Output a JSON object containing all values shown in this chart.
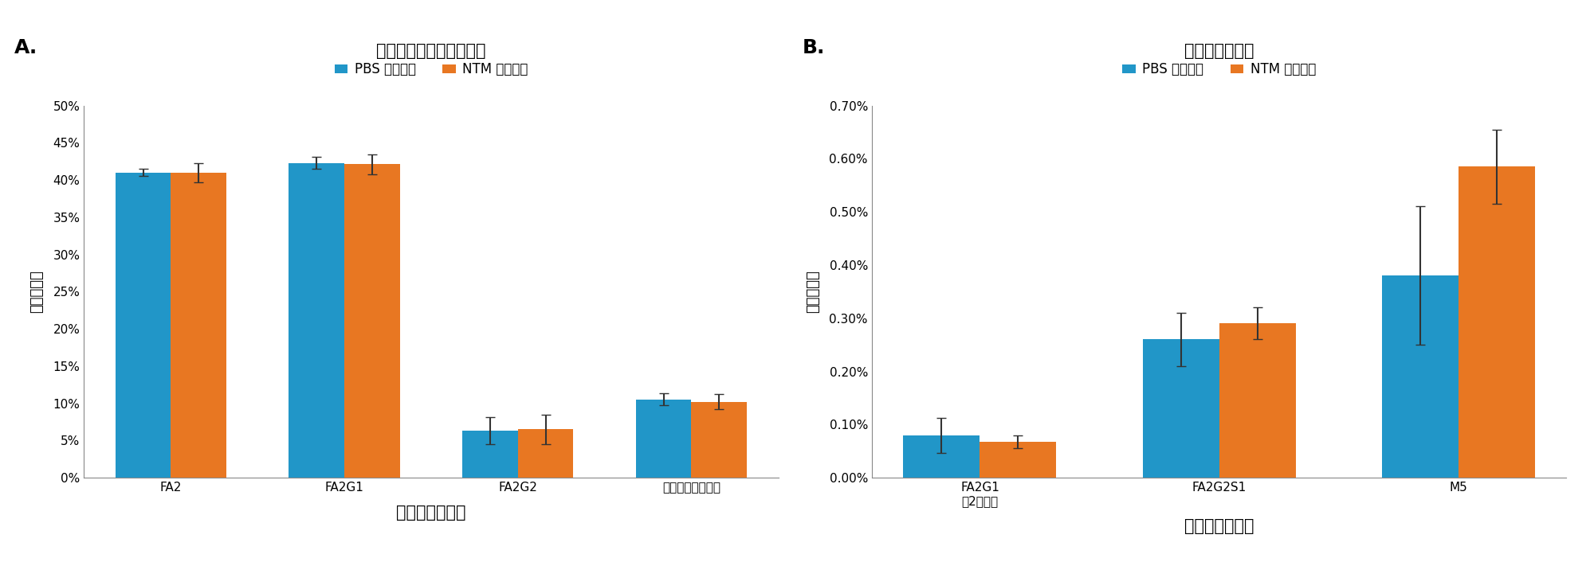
{
  "panel_A": {
    "title": "主要糖鎖のプロファイル",
    "panel_label": "A.",
    "categories": [
      "FA2",
      "FA2G1",
      "FA2G2",
      "アフコシル化糖鎖"
    ],
    "pbs_values": [
      0.41,
      0.423,
      0.063,
      0.105
    ],
    "ntm_values": [
      0.41,
      0.421,
      0.065,
      0.102
    ],
    "pbs_errors": [
      0.005,
      0.008,
      0.018,
      0.008
    ],
    "ntm_errors": [
      0.013,
      0.013,
      0.02,
      0.01
    ],
    "ylim": [
      0,
      0.5
    ],
    "yticks": [
      0.0,
      0.05,
      0.1,
      0.15,
      0.2,
      0.25,
      0.3,
      0.35,
      0.4,
      0.45,
      0.5
    ],
    "ylabel": "相対含有量",
    "xlabel": "グリコフォーム"
  },
  "panel_B": {
    "title": "低存在量の糖鎖",
    "panel_label": "B.",
    "categories": [
      "FA2G1\n（2等分）",
      "FA2G2S1",
      "M5"
    ],
    "pbs_values": [
      0.0008,
      0.0026,
      0.0038
    ],
    "ntm_values": [
      0.00067,
      0.0029,
      0.00585
    ],
    "pbs_errors": [
      0.00033,
      0.0005,
      0.0013
    ],
    "ntm_errors": [
      0.00012,
      0.0003,
      0.0007
    ],
    "ylim": [
      0,
      0.007
    ],
    "yticks": [
      0.0,
      0.001,
      0.002,
      0.003,
      0.004,
      0.005,
      0.006,
      0.007
    ],
    "ylabel": "相対含有量",
    "xlabel": "グリコフォーム"
  },
  "pbs_color": "#2196C8",
  "ntm_color": "#E87722",
  "pbs_label": "PBS サンプル",
  "ntm_label": "NTM サンプル",
  "bar_width": 0.32,
  "legend_fontsize": 12,
  "title_fontsize": 15,
  "tick_fontsize": 11,
  "label_fontsize": 13,
  "panel_label_fontsize": 18,
  "error_capsize": 4,
  "error_color": "#333333",
  "error_linewidth": 1.5
}
